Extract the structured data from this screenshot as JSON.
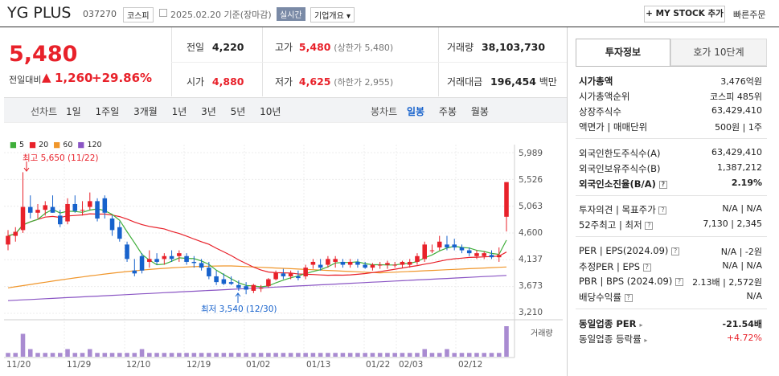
{
  "header": {
    "name": "YG PLUS",
    "code": "037270",
    "market": "코스피",
    "date_text": "2025.02.20 기준(장마감)",
    "realtime": "실시간",
    "company_overview": "기업개요",
    "my_stock_btn": "MY STOCK 추가",
    "quick_order": "빠른주문"
  },
  "price": {
    "current": "5,480",
    "change_label": "전일대비",
    "change": "1,260",
    "change_pct": "+29.86%"
  },
  "stats": {
    "prev_label": "전일",
    "prev": "4,220",
    "high_label": "고가",
    "high": "5,480",
    "upper_limit": "(상한가 5,480)",
    "volume_label": "거래량",
    "volume": "38,103,730",
    "open_label": "시가",
    "open": "4,880",
    "low_label": "저가",
    "low": "4,625",
    "lower_limit": "(하한가 2,955)",
    "amount_label": "거래대금",
    "amount": "196,454",
    "amount_unit": "백만"
  },
  "period_tabs": {
    "line_label": "선차트",
    "line": [
      "1일",
      "1주일",
      "3개월",
      "1년",
      "3년",
      "5년",
      "10년"
    ],
    "candle_label": "봉차트",
    "candle": [
      "일봉",
      "주봉",
      "월봉"
    ]
  },
  "right_tabs": {
    "invest": "투자정보",
    "quote": "호가 10단계"
  },
  "info": [
    {
      "k": "시가총액",
      "v": "3,476억원",
      "bold": true
    },
    {
      "k": "시가총액순위",
      "v": "코스피 485위"
    },
    {
      "k": "상장주식수",
      "v": "63,429,410"
    },
    {
      "k": "액면가 | 매매단위",
      "v": "500원 | 1주"
    },
    {
      "k": "외국인한도주식수(A)",
      "v": "63,429,410"
    },
    {
      "k": "외국인보유주식수(B)",
      "v": "1,387,212"
    },
    {
      "k": "외국인소진율(B/A)",
      "v": "2.19%",
      "bold": true
    },
    {
      "k": "투자의견 | 목표주가",
      "v": "N/A | N/A"
    },
    {
      "k": "52주최고 | 최저",
      "v": "7,130 | 2,345"
    },
    {
      "k": "PER | EPS(2024.09)",
      "v": "N/A | -2원"
    },
    {
      "k": "추정PER | EPS",
      "v": "N/A | N/A"
    },
    {
      "k": "PBR | BPS (2024.09)",
      "v": "2.13배 | 2,572원"
    },
    {
      "k": "배당수익률",
      "v": "N/A"
    },
    {
      "k": "동일업종 PER",
      "v": "-21.54배",
      "bold": true
    },
    {
      "k": "동일업종 등락률",
      "v": "+4.72%",
      "red": true
    }
  ],
  "chart_data": {
    "type": "candlestick",
    "legend": [
      "5",
      "20",
      "60",
      "120"
    ],
    "legend_colors": [
      "#3fae3a",
      "#e8212a",
      "#f0962b",
      "#8a55c4"
    ],
    "yticks": [
      "5,989",
      "5,526",
      "5,063",
      "4,600",
      "4,137",
      "3,673",
      "3,210"
    ],
    "ylim": [
      3210,
      5989
    ],
    "xticks": [
      "11/20",
      "11/29",
      "12/10",
      "12/19",
      "01/02",
      "01/13",
      "01/22",
      "02/03",
      "02/12"
    ],
    "max_annotation": "최고 5,650 (11/22)",
    "min_annotation": "최저 3,540 (12/30)",
    "volume_label": "거래량",
    "candles": [
      [
        4400,
        4650,
        4300,
        4550
      ],
      [
        4550,
        4700,
        4450,
        4620
      ],
      [
        4650,
        5650,
        4600,
        5050
      ],
      [
        5050,
        5250,
        4850,
        4950
      ],
      [
        4950,
        5100,
        4850,
        5000
      ],
      [
        5000,
        5150,
        4900,
        5080
      ],
      [
        5050,
        5250,
        4950,
        4950
      ],
      [
        4900,
        5000,
        4700,
        4750
      ],
      [
        4800,
        5200,
        4750,
        5100
      ],
      [
        5100,
        5250,
        4950,
        4980
      ],
      [
        5000,
        5150,
        4900,
        5000
      ],
      [
        5050,
        5300,
        5000,
        5150
      ],
      [
        5150,
        5200,
        4800,
        4850
      ],
      [
        5200,
        5250,
        4850,
        4950
      ],
      [
        4850,
        4900,
        4550,
        4650
      ],
      [
        4700,
        4800,
        4450,
        4500
      ],
      [
        4400,
        4450,
        4100,
        4150
      ],
      [
        3950,
        4150,
        3850,
        3900
      ],
      [
        4200,
        4250,
        3900,
        3950
      ],
      [
        4100,
        4300,
        4000,
        4150
      ],
      [
        4150,
        4250,
        4050,
        4100
      ],
      [
        4150,
        4250,
        4050,
        4200
      ],
      [
        4200,
        4300,
        4100,
        4150
      ],
      [
        4200,
        4300,
        4100,
        4250
      ],
      [
        4200,
        4250,
        4050,
        4100
      ],
      [
        4100,
        4200,
        4000,
        4080
      ],
      [
        4080,
        4150,
        3950,
        4000
      ],
      [
        4000,
        4100,
        3800,
        3850
      ],
      [
        3850,
        3950,
        3700,
        3750
      ],
      [
        3800,
        3900,
        3700,
        3720
      ],
      [
        3750,
        3850,
        3700,
        3720
      ],
      [
        3700,
        3780,
        3600,
        3650
      ],
      [
        3680,
        3750,
        3540,
        3620
      ],
      [
        3600,
        3720,
        3560,
        3700
      ],
      [
        3650,
        3700,
        3580,
        3650
      ],
      [
        3680,
        3820,
        3650,
        3800
      ],
      [
        3800,
        3950,
        3780,
        3920
      ],
      [
        3900,
        3980,
        3800,
        3850
      ],
      [
        3850,
        3950,
        3800,
        3900
      ],
      [
        3850,
        3950,
        3780,
        3820
      ],
      [
        3850,
        4050,
        3800,
        4000
      ],
      [
        4050,
        4150,
        3980,
        4100
      ],
      [
        4050,
        4150,
        3950,
        4000
      ],
      [
        4050,
        4200,
        4000,
        4150
      ],
      [
        4100,
        4200,
        4000,
        4150
      ],
      [
        4100,
        4150,
        4000,
        4050
      ],
      [
        4050,
        4150,
        4000,
        4100
      ],
      [
        4100,
        4150,
        4000,
        4050
      ],
      [
        4050,
        4100,
        3980,
        4000
      ],
      [
        4000,
        4080,
        3950,
        4050
      ],
      [
        4050,
        4100,
        3980,
        4050
      ],
      [
        4050,
        4120,
        3980,
        4080
      ],
      [
        4050,
        4100,
        4000,
        4050
      ],
      [
        4050,
        4120,
        4000,
        4100
      ],
      [
        4050,
        4150,
        4000,
        4100
      ],
      [
        4100,
        4250,
        4050,
        4200
      ],
      [
        4150,
        4450,
        4100,
        4400
      ],
      [
        4300,
        4400,
        4250,
        4300
      ],
      [
        4350,
        4550,
        4300,
        4450
      ],
      [
        4400,
        4550,
        4300,
        4350
      ],
      [
        4400,
        4500,
        4300,
        4350
      ],
      [
        4350,
        4400,
        4250,
        4300
      ],
      [
        4300,
        4350,
        4200,
        4250
      ],
      [
        4200,
        4300,
        4150,
        4250
      ],
      [
        4200,
        4280,
        4150,
        4250
      ],
      [
        4220,
        4300,
        4150,
        4180
      ],
      [
        4180,
        4350,
        4100,
        4220
      ],
      [
        4880,
        5480,
        4625,
        5480
      ]
    ],
    "volumes": [
      1,
      1,
      6,
      2,
      1,
      1,
      1,
      1,
      2,
      1,
      1,
      2,
      1,
      1,
      1,
      1,
      1,
      1,
      2,
      1,
      1,
      1,
      1,
      1,
      1,
      1,
      1,
      1,
      1,
      1,
      1,
      1,
      1,
      1,
      1,
      1,
      1,
      1,
      1,
      1,
      1,
      1,
      1,
      1,
      1,
      1,
      1,
      1,
      1,
      1,
      1,
      1,
      1,
      1,
      1,
      1,
      2,
      1,
      1,
      2,
      1,
      1,
      1,
      1,
      1,
      1,
      1,
      8
    ]
  }
}
